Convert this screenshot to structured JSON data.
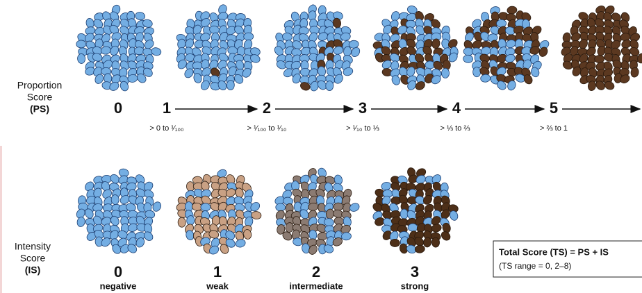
{
  "proportion_score": {
    "label": [
      "Proportion",
      "Score",
      "(PS)"
    ],
    "scores": [
      0,
      1,
      2,
      3,
      4,
      5
    ],
    "ranges": [
      "> 0 to ¹⁄₁₀₀",
      "> ¹⁄₁₀₀ to ¹⁄₁₀",
      "> ¹⁄₁₀ to ⅓",
      "> ⅓ to ⅔",
      "> ⅔ to 1"
    ]
  },
  "intensity_score": {
    "label": [
      "Intensity",
      "Score",
      "(IS)"
    ],
    "scores": [
      0,
      1,
      2,
      3
    ],
    "descriptions": [
      "negative",
      "weak",
      "intermediate",
      "strong"
    ]
  },
  "total_score": {
    "formula": "Total Score (TS) = PS + IS",
    "range": "(TS range = 0, 2–8)"
  }
}
